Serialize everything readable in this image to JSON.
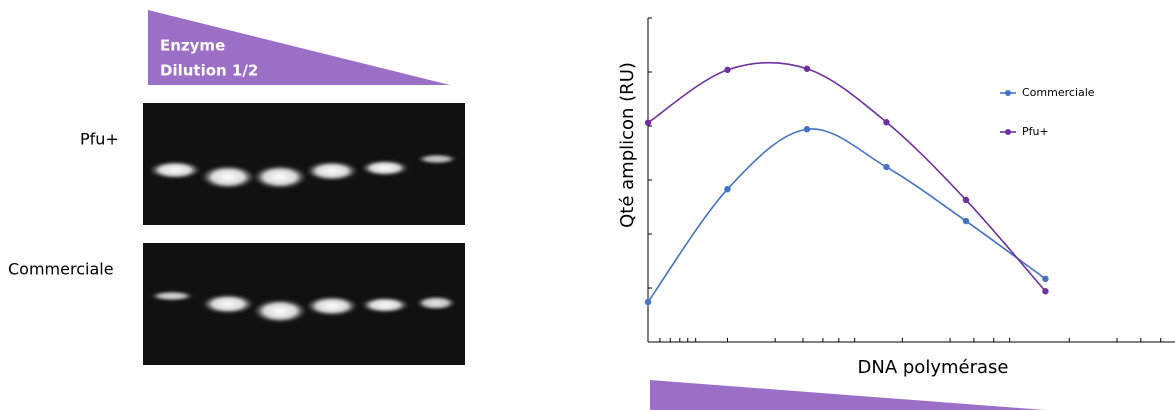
{
  "gel_panel": {
    "header": [
      "Enzyme",
      "Dilution 1/2"
    ],
    "rows": [
      "Pfu+",
      "Commerciale"
    ]
  },
  "chart_data": {
    "type": "line",
    "x_label": "DNA polymérase",
    "y_label": "Qté amplicon (RU)",
    "x": [
      1,
      2,
      3,
      4,
      5,
      6
    ],
    "series": [
      {
        "name": "Commerciale",
        "color": "#4472c4",
        "values": [
          0.74,
          2.83,
          3.94,
          3.24,
          2.24,
          1.17
        ]
      },
      {
        "name": "Pfu+",
        "color": "#7030a0",
        "values": [
          4.06,
          5.04,
          5.06,
          4.07,
          2.63,
          0.94
        ]
      }
    ],
    "xlim": [
      1,
      7.63
    ],
    "ylim": [
      0,
      6
    ],
    "xticks": [
      1.15,
      1.28,
      1.4,
      1.5,
      1.6,
      2.0,
      2.6,
      2.95,
      3.2,
      3.4,
      3.6,
      4.2,
      4.8,
      5.1,
      5.35,
      5.55,
      6.3,
      6.9,
      7.2,
      7.45
    ],
    "yticks": [
      1,
      2,
      3,
      4,
      5,
      6
    ],
    "legend": "right",
    "smooth": true
  }
}
